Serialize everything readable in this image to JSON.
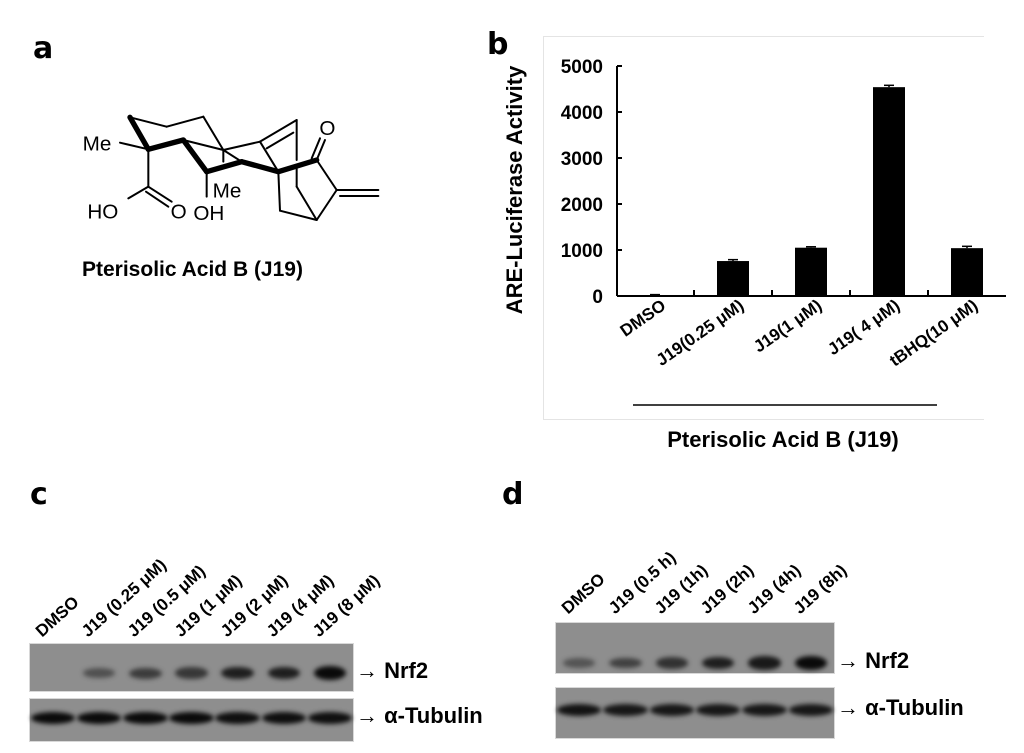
{
  "panels": {
    "a": {
      "letter": "a",
      "compound_name": "Pterisolic Acid B (J19)",
      "structure_labels": {
        "me1": "Me",
        "ho": "HO",
        "o1": "O",
        "oh": "OH",
        "me2": "Me",
        "o2": "O"
      }
    },
    "b": {
      "letter": "b",
      "group_label": "Pterisolic Acid B (J19)"
    },
    "c": {
      "letter": "c",
      "lanes": [
        "DMSO",
        "J19 (0.25 μM)",
        "J19 (0.5 μM)",
        "J19 (1 μM)",
        "J19 (2 μM)",
        "J19 (4 μM)",
        "J19 (8 μM)"
      ],
      "nrf2_relative_intensity": [
        0.0,
        0.3,
        0.5,
        0.55,
        0.8,
        0.8,
        1.0
      ],
      "tubulin_relative_intensity": [
        1,
        1,
        1,
        1,
        0.95,
        0.95,
        0.95
      ],
      "protein_labels": [
        "Nrf2",
        "α-Tubulin"
      ]
    },
    "d": {
      "letter": "d",
      "lanes": [
        "DMSO",
        "J19 (0.5 h)",
        "J19 (1h)",
        "J19 (2h)",
        "J19 (4h)",
        "J19 (8h)"
      ],
      "nrf2_relative_intensity": [
        0.25,
        0.45,
        0.6,
        0.8,
        0.85,
        1.0
      ],
      "tubulin_relative_intensity": [
        0.9,
        0.85,
        0.85,
        0.85,
        0.85,
        0.85
      ],
      "protein_labels": [
        "Nrf2",
        "α-Tubulin"
      ]
    }
  },
  "chart_data": {
    "type": "bar",
    "categories": [
      "DMSO",
      "J19(0.25 μM)",
      "J19(1 μM)",
      "J19( 4 μM)",
      "tBHQ(10 μM)"
    ],
    "values": [
      20,
      760,
      1050,
      4540,
      1040
    ],
    "errors": [
      10,
      30,
      20,
      40,
      40
    ],
    "xlabel": "",
    "ylabel": "ARE-Luciferase Activity",
    "ylim": [
      0,
      5000
    ],
    "yticks": [
      0,
      1000,
      2000,
      3000,
      4000,
      5000
    ],
    "grid": false,
    "bar_color": "#000000"
  }
}
